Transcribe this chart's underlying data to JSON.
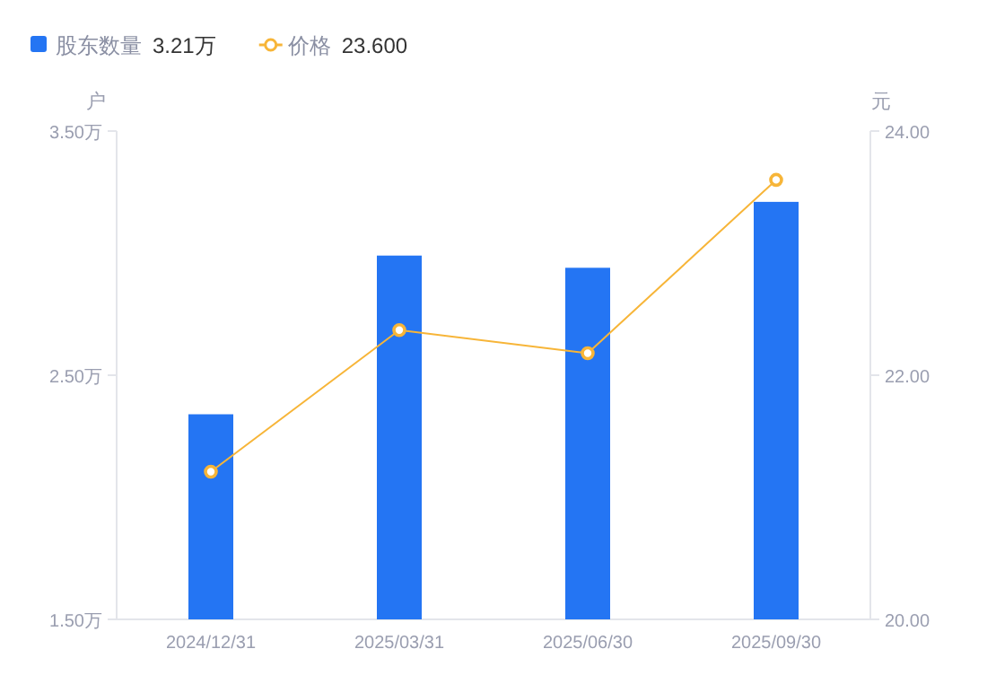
{
  "chart_data": {
    "type": "bar",
    "categories": [
      "2024/12/31",
      "2025/03/31",
      "2025/06/30",
      "2025/09/30"
    ],
    "ylabel": "户",
    "y2label": "元",
    "ylim": [
      1.5,
      3.5
    ],
    "yticks": [
      {
        "value": 1.5,
        "label": "1.50万"
      },
      {
        "value": 2.5,
        "label": "2.50万"
      },
      {
        "value": 3.5,
        "label": "3.50万"
      }
    ],
    "y2lim": [
      20,
      24
    ],
    "y2ticks": [
      {
        "value": 20,
        "label": "20.00"
      },
      {
        "value": 22,
        "label": "22.00"
      },
      {
        "value": 24,
        "label": "24.00"
      }
    ],
    "series": [
      {
        "name": "股东数量",
        "color": "#2475f3",
        "values": [
          2.34,
          2.99,
          2.94,
          3.21
        ]
      },
      {
        "name": "价格",
        "type": "line",
        "axis": "y2",
        "color": "#f7b538",
        "marker": "circle",
        "line_style": "solid",
        "values": [
          21.21,
          22.37,
          22.18,
          23.6
        ]
      }
    ],
    "annotations": [
      "3.21万",
      "23.600"
    ],
    "legend": "top left",
    "grid": false
  }
}
